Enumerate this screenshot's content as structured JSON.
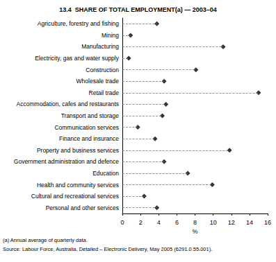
{
  "chart_data": {
    "type": "dot",
    "title": "13.4  SHARE OF TOTAL EMPLOYMENT(a) — 2003–04",
    "x_label": "%",
    "annotations": [
      "(a) Annual average of quarterly data.",
      "Source: Labour Force, Australia, Detailed – Electronic Delivery, May 2005 (6291.0.55.001)."
    ],
    "categories": [
      "Agriculture, forestry and fishing",
      "Mining",
      "Manufacturing",
      "Electricity, gas and water supply",
      "Construction",
      "Wholesale trade",
      "Retail trade",
      "Accommodation, cafes and restaurants",
      "Transport and storage",
      "Communication services",
      "Finance and insurance",
      "Property and business services",
      "Government administration and defence",
      "Education",
      "Health and community services",
      "Cultural and recreational services",
      "Personal and other services"
    ],
    "values": [
      3.8,
      0.9,
      11.1,
      0.7,
      8.1,
      4.6,
      15.0,
      4.8,
      4.4,
      1.7,
      3.6,
      11.8,
      4.6,
      7.2,
      9.9,
      2.4,
      3.8
    ],
    "color": "#000000",
    "marker": "diamond",
    "line_style": "dashed",
    "orientation": "horizontal",
    "xlim": [
      0,
      16
    ],
    "xticks": [
      0,
      2,
      4,
      6,
      8,
      10,
      12,
      14,
      16
    ],
    "grid": false
  }
}
